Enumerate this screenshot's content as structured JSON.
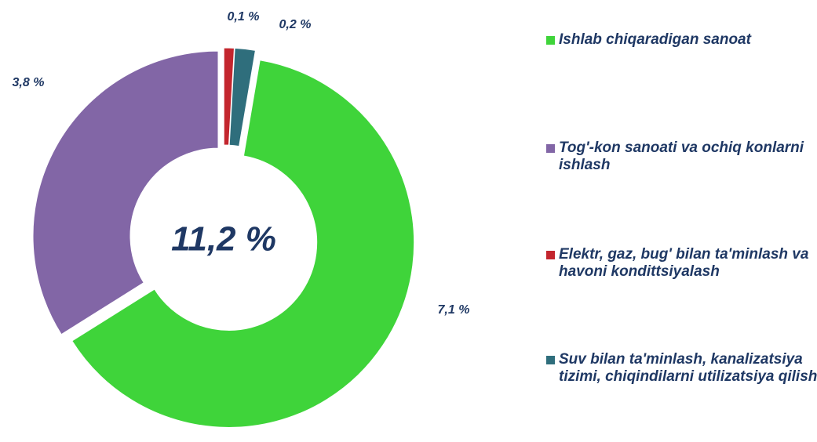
{
  "chart_data": {
    "type": "donut",
    "center_label": "11,2 %",
    "categories": [
      "Ishlab chiqaradigan sanoat",
      "Tog'-kon sanoati va ochiq konlarni ishlash",
      "Elektr, gaz, bug'  bilan ta'minlash va havoni kondittsiyalash",
      "Suv bilan ta'minlash, kanalizatsiya tizimi, chiqindilarni utilizatsiya qilish"
    ],
    "values": [
      7.1,
      3.8,
      0.1,
      0.2
    ],
    "value_labels": [
      "7,1 %",
      "3,8 %",
      "0,1 %",
      "0,2 %"
    ],
    "colors": [
      "#3fd43a",
      "#8266a6",
      "#c3262e",
      "#2f6e7c"
    ],
    "legend": "right"
  }
}
